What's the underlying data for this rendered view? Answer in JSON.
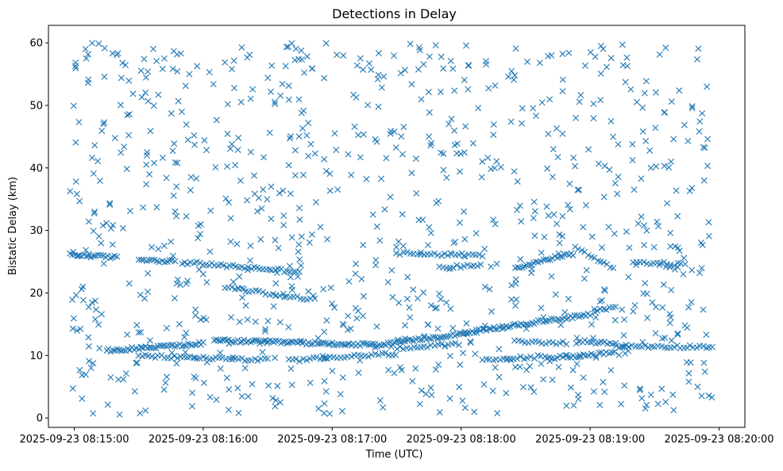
{
  "chart_data": {
    "type": "scatter",
    "title": "Detections in Delay",
    "xlabel": "Time (UTC)",
    "ylabel": "Bistatic Delay (km)",
    "marker": "x",
    "color": "#1f77b4",
    "grid": false,
    "x_axis": {
      "kind": "time",
      "ticks": [
        {
          "t": "2025-09-23 08:15:00",
          "label": "2025-09-23 08:15:00"
        },
        {
          "t": "2025-09-23 08:16:00",
          "label": "2025-09-23 08:16:00"
        },
        {
          "t": "2025-09-23 08:17:00",
          "label": "2025-09-23 08:17:00"
        },
        {
          "t": "2025-09-23 08:18:00",
          "label": "2025-09-23 08:18:00"
        },
        {
          "t": "2025-09-23 08:19:00",
          "label": "2025-09-23 08:19:00"
        },
        {
          "t": "2025-09-23 08:20:00",
          "label": "2025-09-23 08:20:00"
        }
      ],
      "xlim": [
        "2025-09-23 08:14:48",
        "2025-09-23 08:20:12"
      ]
    },
    "y_axis": {
      "ticks": [
        0,
        10,
        20,
        30,
        40,
        50,
        60
      ],
      "ylim": [
        -1.5,
        62.8
      ]
    },
    "series": [
      {
        "tracks": [
          {
            "t0": "2025-09-23 08:14:58",
            "t1": "2025-09-23 08:15:20",
            "y0": 26.1,
            "y1": 25.7,
            "step_s": 1.1
          },
          {
            "t0": "2025-09-23 08:15:30",
            "t1": "2025-09-23 08:15:48",
            "y0": 25.4,
            "y1": 25.0,
            "step_s": 1.2
          },
          {
            "t0": "2025-09-23 08:15:50",
            "t1": "2025-09-23 08:16:45",
            "y0": 24.9,
            "y1": 23.4,
            "step_s": 1.4
          },
          {
            "t0": "2025-09-23 08:16:10",
            "t1": "2025-09-23 08:16:50",
            "y0": 20.9,
            "y1": 19.0,
            "step_s": 1.6
          },
          {
            "t0": "2025-09-23 08:17:30",
            "t1": "2025-09-23 08:18:10",
            "y0": 26.4,
            "y1": 26.0,
            "step_s": 1.6
          },
          {
            "t0": "2025-09-23 08:17:50",
            "t1": "2025-09-23 08:18:10",
            "y0": 24.0,
            "y1": 24.6,
            "step_s": 1.6
          },
          {
            "t0": "2025-09-23 08:18:25",
            "t1": "2025-09-23 08:18:52",
            "y0": 24.0,
            "y1": 26.4,
            "step_s": 1.1
          },
          {
            "t0": "2025-09-23 08:18:53",
            "t1": "2025-09-23 08:19:12",
            "y0": 27.2,
            "y1": 23.8,
            "step_s": 1.5
          },
          {
            "t0": "2025-09-23 08:19:20",
            "t1": "2025-09-23 08:19:45",
            "y0": 25.0,
            "y1": 24.5,
            "step_s": 1.6
          },
          {
            "t0": "2025-09-23 08:15:15",
            "t1": "2025-09-23 08:16:00",
            "y0": 10.8,
            "y1": 11.9,
            "step_s": 1.0
          },
          {
            "t0": "2025-09-23 08:15:30",
            "t1": "2025-09-23 08:16:30",
            "y0": 9.9,
            "y1": 9.3,
            "step_s": 1.5
          },
          {
            "t0": "2025-09-23 08:16:05",
            "t1": "2025-09-23 08:17:20",
            "y0": 12.4,
            "y1": 11.7,
            "step_s": 1.0
          },
          {
            "t0": "2025-09-23 08:16:40",
            "t1": "2025-09-23 08:17:30",
            "y0": 9.2,
            "y1": 10.3,
            "step_s": 1.6
          },
          {
            "t0": "2025-09-23 08:17:20",
            "t1": "2025-09-23 08:19:00",
            "y0": 11.5,
            "y1": 16.6,
            "step_s": 1.0
          },
          {
            "t0": "2025-09-23 08:17:30",
            "t1": "2025-09-23 08:18:00",
            "y0": 11.2,
            "y1": 11.8,
            "step_s": 1.6
          },
          {
            "t0": "2025-09-23 08:18:10",
            "t1": "2025-09-23 08:18:40",
            "y0": 9.2,
            "y1": 9.9,
            "step_s": 1.6
          },
          {
            "t0": "2025-09-23 08:18:25",
            "t1": "2025-09-23 08:18:50",
            "y0": 12.2,
            "y1": 12.0,
            "step_s": 1.6
          },
          {
            "t0": "2025-09-23 08:18:40",
            "t1": "2025-09-23 08:19:12",
            "y0": 9.6,
            "y1": 10.4,
            "step_s": 1.2
          },
          {
            "t0": "2025-09-23 08:18:55",
            "t1": "2025-09-23 08:19:12",
            "y0": 12.3,
            "y1": 11.9,
            "step_s": 1.3
          },
          {
            "t0": "2025-09-23 08:19:02",
            "t1": "2025-09-23 08:19:12",
            "y0": 17.2,
            "y1": 17.8,
            "step_s": 1.4
          },
          {
            "t0": "2025-09-23 08:19:12",
            "t1": "2025-09-23 08:19:58",
            "y0": 11.5,
            "y1": 11.4,
            "step_s": 1.5
          }
        ],
        "scatter": {
          "t_start": "2025-09-23 08:14:58",
          "t_end": "2025-09-23 08:19:58",
          "y_min": 0.5,
          "y_max": 60.0,
          "count": 900
        }
      }
    ]
  }
}
